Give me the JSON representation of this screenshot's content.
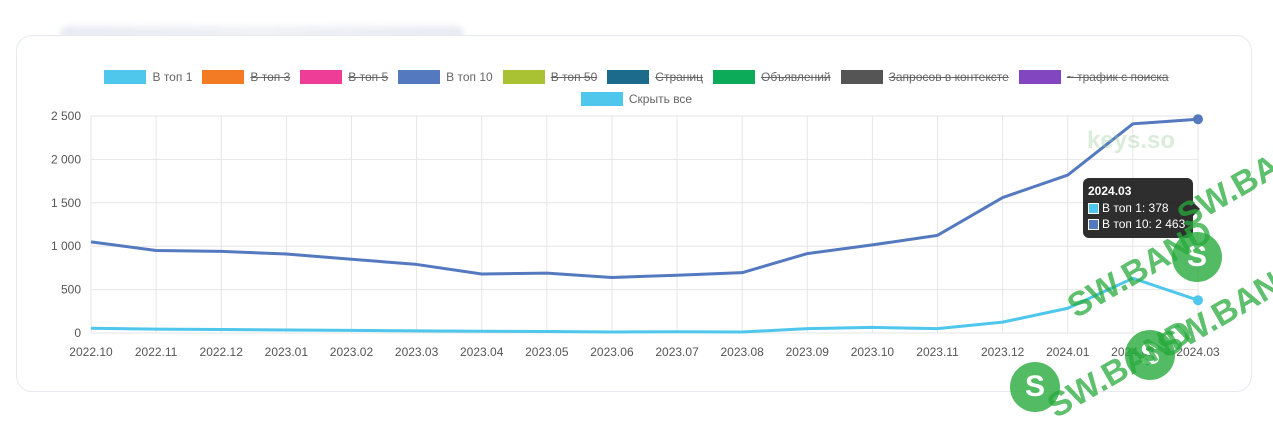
{
  "legend": {
    "items": [
      {
        "label": "В топ 1",
        "color": "#4fc6eb",
        "hidden": false
      },
      {
        "label": "В топ 3",
        "color": "#f27b24",
        "hidden": true
      },
      {
        "label": "В топ 5",
        "color": "#ee3d96",
        "hidden": true
      },
      {
        "label": "В топ 10",
        "color": "#5479bf",
        "hidden": false
      },
      {
        "label": "В топ 50",
        "color": "#a9c234",
        "hidden": true
      },
      {
        "label": "Страниц",
        "color": "#1c6a8c",
        "hidden": true
      },
      {
        "label": "Объявлений",
        "color": "#0bab59",
        "hidden": true
      },
      {
        "label": "Запросов в контексте",
        "color": "#555555",
        "hidden": true
      },
      {
        "label": "~ трафик с поиска",
        "color": "#8246c0",
        "hidden": true
      }
    ],
    "hide_all": {
      "label": "Скрыть все",
      "color": "#4fc6eb"
    }
  },
  "tooltip": {
    "title": "2024.03",
    "rows": [
      {
        "text": "В топ 1: 378",
        "color": "#4fc6eb"
      },
      {
        "text": "В топ 10: 2 463",
        "color": "#5479bf"
      }
    ]
  },
  "watermark": {
    "keys": "keys.so",
    "band": "SW.BAND",
    "logo_letter": "S"
  },
  "chart_data": {
    "type": "line",
    "categories": [
      "2022.10",
      "2022.11",
      "2022.12",
      "2023.01",
      "2023.02",
      "2023.03",
      "2023.04",
      "2023.05",
      "2023.06",
      "2023.07",
      "2023.08",
      "2023.09",
      "2023.10",
      "2023.11",
      "2023.12",
      "2024.01",
      "2024.02",
      "2024.03"
    ],
    "series": [
      {
        "name": "В топ 10",
        "color": "#5479bf",
        "values": [
          1050,
          950,
          940,
          910,
          850,
          790,
          680,
          690,
          640,
          665,
          695,
          915,
          1015,
          1125,
          1560,
          1820,
          2410,
          2463
        ]
      },
      {
        "name": "В топ 1",
        "color": "#4fc6eb",
        "values": [
          55,
          45,
          40,
          35,
          30,
          25,
          20,
          18,
          12,
          15,
          12,
          50,
          65,
          50,
          125,
          285,
          630,
          378
        ]
      }
    ],
    "ylim": [
      0,
      2500
    ],
    "yticks": [
      {
        "v": 0,
        "label": "0"
      },
      {
        "v": 500,
        "label": "500"
      },
      {
        "v": 1000,
        "label": "1 000"
      },
      {
        "v": 1500,
        "label": "1 500"
      },
      {
        "v": 2000,
        "label": "2 000"
      },
      {
        "v": 2500,
        "label": "2 500"
      }
    ],
    "grid": true,
    "legend_position": "top",
    "highlight_category": "2024.03"
  }
}
